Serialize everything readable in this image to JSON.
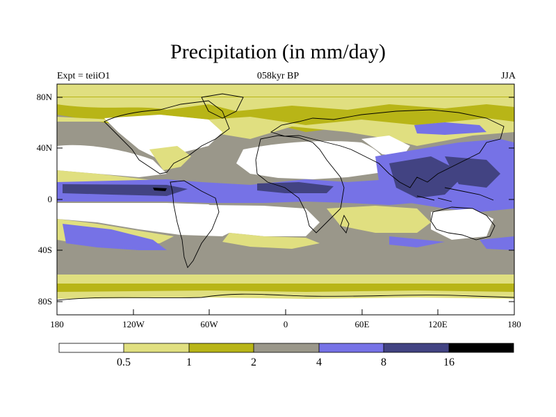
{
  "header": {
    "title": "Precipitation (in mm/day)",
    "left_label": "Expt = teiiO1",
    "center_label": "058kyr BP",
    "right_label": "JJA"
  },
  "map": {
    "type": "contour-map",
    "lat_ticks": [
      "80N",
      "40N",
      "0",
      "40S",
      "80S"
    ],
    "lon_ticks": [
      "180",
      "120W",
      "60W",
      "0",
      "60E",
      "120E",
      "180"
    ],
    "fill_colors": {
      "lt_0_5": "#ffffff",
      "0_5_to_1": "#e0df80",
      "1_to_2": "#b8b517",
      "2_to_4": "#9a978a",
      "4_to_8": "#7672e6",
      "8_to_16": "#424382",
      "gt_16": "#000000"
    },
    "coastline_color": "#000000"
  },
  "colorbar": {
    "labels": [
      "0.5",
      "1",
      "2",
      "4",
      "8",
      "16"
    ],
    "colors": [
      "#ffffff",
      "#e0df80",
      "#b8b517",
      "#9a978a",
      "#7672e6",
      "#424382",
      "#000000"
    ]
  }
}
